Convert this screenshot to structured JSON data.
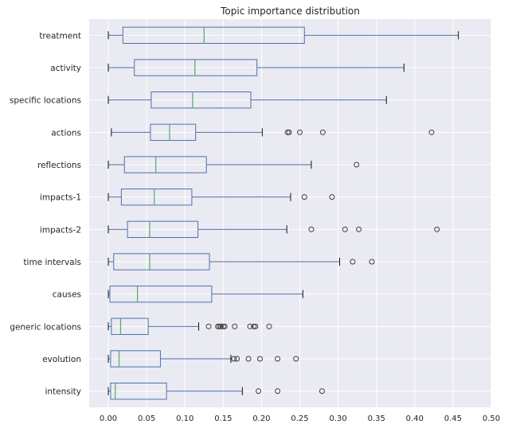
{
  "chart_data": {
    "type": "boxplot",
    "orientation": "horizontal",
    "title": "Topic importance distribution",
    "xlabel": "",
    "ylabel": "",
    "xlim": [
      -0.025,
      0.5
    ],
    "xticks": [
      "0.00",
      "0.05",
      "0.10",
      "0.15",
      "0.20",
      "0.25",
      "0.30",
      "0.35",
      "0.40",
      "0.45",
      "0.50"
    ],
    "grid": true,
    "colors": {
      "plot_bg": "#eaeaf2",
      "grid": "#ffffff",
      "box": "#4c72b0",
      "median": "#55a868",
      "whisker": "#4c72b0",
      "outlier": "#3d3d3d",
      "text": "#262626"
    },
    "categories": [
      {
        "name": "treatment",
        "whislo": 0.0,
        "q1": 0.019,
        "med": 0.125,
        "q3": 0.256,
        "whishi": 0.457,
        "fliers": []
      },
      {
        "name": "activity",
        "whislo": 0.0,
        "q1": 0.034,
        "med": 0.113,
        "q3": 0.194,
        "whishi": 0.386,
        "fliers": []
      },
      {
        "name": "specific locations",
        "whislo": 0.0,
        "q1": 0.056,
        "med": 0.11,
        "q3": 0.186,
        "whishi": 0.363,
        "fliers": []
      },
      {
        "name": "actions",
        "whislo": 0.004,
        "q1": 0.055,
        "med": 0.08,
        "q3": 0.114,
        "whishi": 0.201,
        "fliers": [
          0.234,
          0.236,
          0.25,
          0.28,
          0.422
        ]
      },
      {
        "name": "reflections",
        "whislo": 0.0,
        "q1": 0.021,
        "med": 0.062,
        "q3": 0.128,
        "whishi": 0.265,
        "fliers": [
          0.324
        ]
      },
      {
        "name": "impacts-1",
        "whislo": 0.0,
        "q1": 0.017,
        "med": 0.06,
        "q3": 0.109,
        "whishi": 0.238,
        "fliers": [
          0.256,
          0.292
        ]
      },
      {
        "name": "impacts-2",
        "whislo": 0.0,
        "q1": 0.025,
        "med": 0.054,
        "q3": 0.117,
        "whishi": 0.233,
        "fliers": [
          0.265,
          0.309,
          0.327,
          0.429
        ]
      },
      {
        "name": "time intervals",
        "whislo": 0.0,
        "q1": 0.007,
        "med": 0.054,
        "q3": 0.132,
        "whishi": 0.302,
        "fliers": [
          0.319,
          0.344
        ]
      },
      {
        "name": "causes",
        "whislo": 0.0,
        "q1": 0.002,
        "med": 0.038,
        "q3": 0.135,
        "whishi": 0.254,
        "fliers": []
      },
      {
        "name": "generic locations",
        "whislo": 0.0,
        "q1": 0.004,
        "med": 0.016,
        "q3": 0.052,
        "whishi": 0.118,
        "fliers": [
          0.131,
          0.143,
          0.145,
          0.147,
          0.15,
          0.152,
          0.165,
          0.185,
          0.19,
          0.192,
          0.21
        ]
      },
      {
        "name": "evolution",
        "whislo": 0.0,
        "q1": 0.003,
        "med": 0.014,
        "q3": 0.068,
        "whishi": 0.16,
        "fliers": [
          0.164,
          0.168,
          0.183,
          0.198,
          0.221,
          0.245
        ]
      },
      {
        "name": "intensity",
        "whislo": 0.0,
        "q1": 0.003,
        "med": 0.009,
        "q3": 0.076,
        "whishi": 0.175,
        "fliers": [
          0.196,
          0.221,
          0.279
        ]
      }
    ]
  }
}
